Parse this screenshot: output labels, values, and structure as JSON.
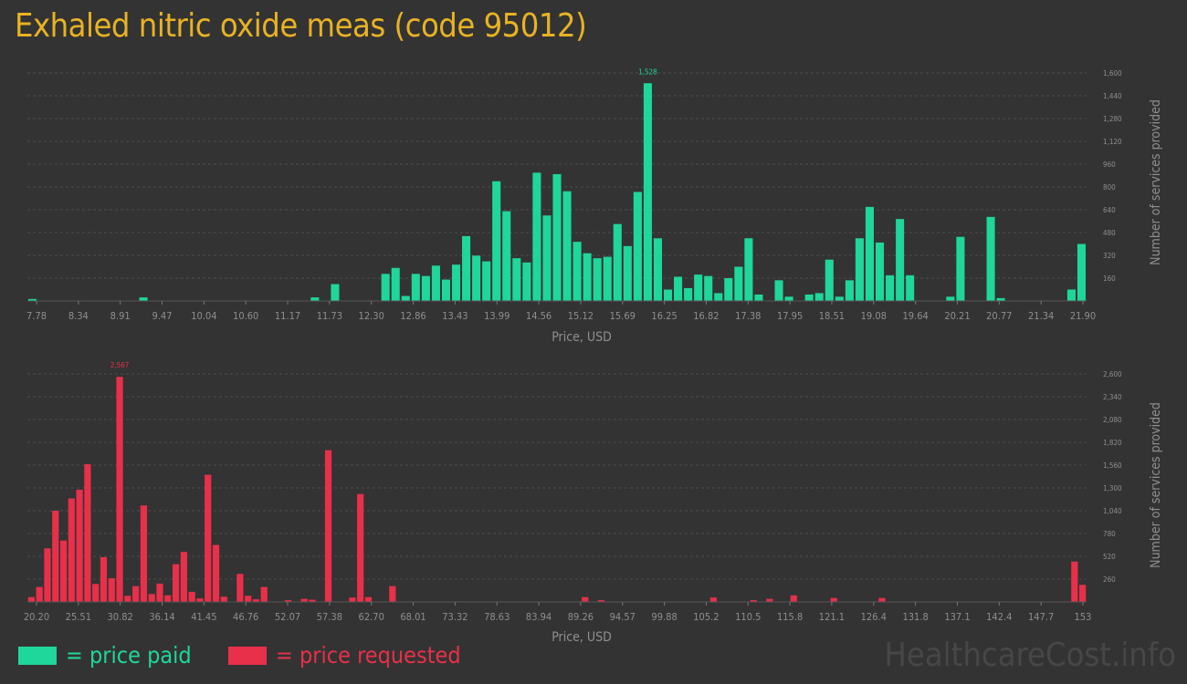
{
  "title": "Exhaled nitric oxide meas (code 95012)",
  "legend": {
    "paid_label": "= price paid",
    "requested_label": "= price requested"
  },
  "watermark": "HealthcareCost.info",
  "colors": {
    "paid": "#1fd69b",
    "requested": "#e8304a",
    "title": "#e8b224"
  },
  "chart_data": [
    {
      "type": "bar",
      "name": "price paid",
      "xlabel": "Price, USD",
      "ylabel": "Number of services provided",
      "xlim": [
        7.78,
        21.9
      ],
      "ylim": [
        0,
        1600
      ],
      "x_tick_labels": [
        "7.78",
        "8.34",
        "8.91",
        "9.47",
        "10.04",
        "10.60",
        "11.17",
        "11.73",
        "12.30",
        "12.86",
        "13.43",
        "13.99",
        "14.56",
        "15.12",
        "15.69",
        "16.25",
        "16.82",
        "17.38",
        "17.95",
        "18.51",
        "19.08",
        "19.64",
        "20.21",
        "20.77",
        "21.34",
        "21.90"
      ],
      "y_tick_labels": [
        "160",
        "320",
        "480",
        "640",
        "800",
        "960",
        "1,120",
        "1,280",
        "1,440",
        "1,600"
      ],
      "y_ticks": [
        160,
        320,
        480,
        640,
        800,
        960,
        1120,
        1280,
        1440,
        1600
      ],
      "max_label": "1,528",
      "values": [
        14,
        0,
        0,
        0,
        0,
        0,
        0,
        0,
        0,
        0,
        0,
        25,
        0,
        0,
        0,
        0,
        0,
        0,
        0,
        0,
        0,
        0,
        0,
        0,
        0,
        0,
        0,
        0,
        25,
        0,
        118,
        0,
        0,
        0,
        0,
        190,
        232,
        35,
        190,
        175,
        248,
        150,
        255,
        455,
        318,
        278,
        840,
        630,
        300,
        270,
        900,
        600,
        890,
        770,
        415,
        335,
        300,
        310,
        540,
        385,
        765,
        1528,
        440,
        80,
        170,
        90,
        185,
        175,
        55,
        160,
        240,
        440,
        45,
        0,
        145,
        30,
        0,
        45,
        55,
        290,
        30,
        145,
        440,
        660,
        410,
        180,
        575,
        180,
        0,
        0,
        0,
        30,
        450,
        0,
        0,
        590,
        20,
        0,
        0,
        0,
        0,
        0,
        0,
        80,
        400
      ]
    },
    {
      "type": "bar",
      "name": "price requested",
      "xlabel": "Price, USD",
      "ylabel": "Number of services provided",
      "xlim": [
        20.2,
        153
      ],
      "ylim": [
        0,
        2600
      ],
      "x_tick_labels": [
        "20.20",
        "25.51",
        "30.82",
        "36.14",
        "41.45",
        "46.76",
        "52.07",
        "57.38",
        "62.70",
        "68.01",
        "73.32",
        "78.63",
        "83.94",
        "89.26",
        "94.57",
        "99.88",
        "105.2",
        "110.5",
        "115.8",
        "121.1",
        "126.4",
        "131.8",
        "137.1",
        "142.4",
        "147.7",
        "153"
      ],
      "y_tick_labels": [
        "260",
        "520",
        "780",
        "1,040",
        "1,300",
        "1,560",
        "1,820",
        "2,080",
        "2,340",
        "2,600"
      ],
      "y_ticks": [
        260,
        520,
        780,
        1040,
        1300,
        1560,
        1820,
        2080,
        2340,
        2600
      ],
      "max_label": "2,567",
      "values": [
        55,
        170,
        610,
        1040,
        700,
        1180,
        1280,
        1570,
        205,
        510,
        270,
        2567,
        70,
        180,
        1100,
        90,
        210,
        75,
        430,
        570,
        115,
        40,
        1450,
        650,
        60,
        0,
        320,
        70,
        30,
        170,
        0,
        0,
        20,
        0,
        35,
        25,
        0,
        1730,
        0,
        0,
        50,
        1230,
        55,
        0,
        0,
        180,
        0,
        0,
        0,
        0,
        0,
        0,
        0,
        0,
        0,
        0,
        0,
        0,
        0,
        0,
        0,
        0,
        0,
        0,
        0,
        0,
        0,
        0,
        0,
        55,
        0,
        20,
        0,
        0,
        0,
        0,
        0,
        0,
        0,
        0,
        0,
        0,
        0,
        0,
        0,
        50,
        0,
        0,
        0,
        0,
        20,
        0,
        35,
        0,
        0,
        75,
        0,
        0,
        0,
        0,
        45,
        0,
        0,
        0,
        0,
        0,
        45,
        0,
        0,
        0,
        0,
        0,
        0,
        0,
        0,
        0,
        0,
        0,
        0,
        0,
        0,
        0,
        0,
        0,
        0,
        0,
        0,
        0,
        0,
        0,
        460,
        195
      ]
    }
  ]
}
